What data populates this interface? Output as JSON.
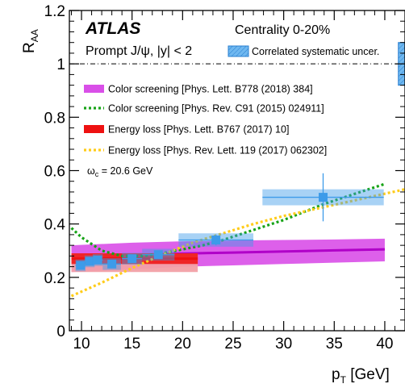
{
  "chart_data": {
    "type": "scatter",
    "title": "ATLAS",
    "subtitle": "Prompt J/ψ, |y| < 2",
    "centrality": "Centrality 0-20%",
    "xlabel_main": "p",
    "xlabel_sub": "T",
    "xlabel_unit": " [GeV]",
    "ylabel_main": "R",
    "ylabel_sub": "AA",
    "xlim": [
      8.8,
      42
    ],
    "ylim": [
      0,
      1.2
    ],
    "xticks": [
      10,
      15,
      20,
      25,
      30,
      35,
      40
    ],
    "yticks": [
      0,
      0.2,
      0.4,
      0.6,
      0.8,
      1,
      1.2
    ],
    "ytick_labels": [
      "0",
      "0.2",
      "0.4",
      "0.6",
      "0.8",
      "1",
      "1.2"
    ],
    "grid": false,
    "reference_line": 1,
    "correlated_uncertainty": {
      "label": "Correlated systematic uncer.",
      "x": 41.5,
      "low": 0.92,
      "high": 1.08,
      "color": "#6fb8f0"
    },
    "data_points": {
      "color": "#3d9be9",
      "points": [
        {
          "x": 9.9,
          "y": 0.245,
          "xerr": 0.5,
          "yerr": 0.015,
          "sys": 0.022
        },
        {
          "x": 10.8,
          "y": 0.26,
          "xerr": 0.5,
          "yerr": 0.015,
          "sys": 0.022
        },
        {
          "x": 11.6,
          "y": 0.265,
          "xerr": 0.5,
          "yerr": 0.015,
          "sys": 0.022
        },
        {
          "x": 13.0,
          "y": 0.25,
          "xerr": 0.9,
          "yerr": 0.015,
          "sys": 0.022
        },
        {
          "x": 15.0,
          "y": 0.27,
          "xerr": 1.0,
          "yerr": 0.015,
          "sys": 0.022
        },
        {
          "x": 17.6,
          "y": 0.285,
          "xerr": 1.6,
          "yerr": 0.015,
          "sys": 0.022
        },
        {
          "x": 23.3,
          "y": 0.34,
          "xerr": 3.7,
          "yerr": 0.02,
          "sys": 0.025
        },
        {
          "x": 33.9,
          "y": 0.5,
          "xerr": 6.0,
          "yerr": 0.09,
          "sys": 0.03
        }
      ]
    },
    "series": [
      {
        "name": "Color screening [Phys. Lett. B778 (2018) 384]",
        "style": "band",
        "color": "#d94fe8",
        "line_color": "#b000c8",
        "x": [
          9,
          15,
          20,
          25,
          30,
          35,
          40
        ],
        "y": [
          0.28,
          0.284,
          0.289,
          0.293,
          0.297,
          0.301,
          0.305
        ],
        "low": [
          0.22,
          0.23,
          0.24,
          0.245,
          0.25,
          0.255,
          0.26
        ],
        "high": [
          0.32,
          0.33,
          0.335,
          0.338,
          0.34,
          0.342,
          0.345
        ]
      },
      {
        "name": "Color screening [Phys. Rev. C91 (2015) 024911]",
        "style": "dotted",
        "color": "#17a317",
        "x": [
          9,
          10,
          12,
          14,
          16,
          18,
          20,
          22,
          24,
          26,
          28,
          30,
          32,
          34,
          36,
          38,
          40
        ],
        "y": [
          0.385,
          0.35,
          0.3,
          0.28,
          0.28,
          0.29,
          0.305,
          0.32,
          0.34,
          0.365,
          0.39,
          0.415,
          0.445,
          0.475,
          0.5,
          0.525,
          0.55
        ]
      },
      {
        "name": "Energy loss [Phys. Lett. B767 (2017) 10]",
        "style": "band",
        "color": "#f2a0a6",
        "line_color": "#ee1111",
        "x": [
          9,
          12,
          15,
          18,
          21.5
        ],
        "y": [
          0.27,
          0.27,
          0.27,
          0.27,
          0.27
        ],
        "low": [
          0.22,
          0.22,
          0.22,
          0.22,
          0.22
        ],
        "high": [
          0.29,
          0.29,
          0.29,
          0.29,
          0.29
        ],
        "inner_low": [
          0.25,
          0.25,
          0.25,
          0.25,
          0.25
        ],
        "inner_high": [
          0.29,
          0.29,
          0.29,
          0.29,
          0.29
        ]
      },
      {
        "name": "Energy loss [Phys. Rev. Lett. 119 (2017) 062302]",
        "style": "dotted",
        "color": "#ffcc1a",
        "x": [
          9,
          12,
          15,
          18,
          21,
          24,
          27,
          30,
          33,
          36,
          39,
          42
        ],
        "y": [
          0.13,
          0.18,
          0.235,
          0.285,
          0.33,
          0.365,
          0.4,
          0.43,
          0.455,
          0.48,
          0.505,
          0.53
        ]
      }
    ],
    "annotation": "ω",
    "annotation_sub": "c",
    "annotation_rest": " = 20.6 GeV"
  }
}
